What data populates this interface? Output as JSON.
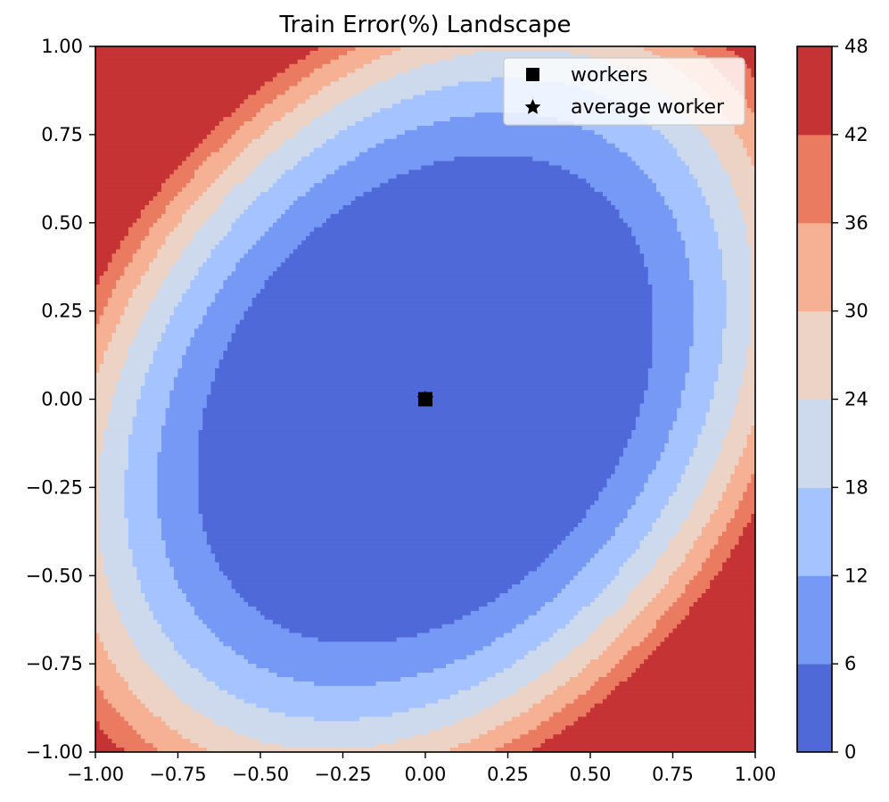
{
  "chart_data": {
    "type": "contour",
    "title": "Train Error(%) Landscape",
    "xlabel": "",
    "ylabel": "",
    "xlim": [
      -1.0,
      1.0
    ],
    "ylim": [
      -1.0,
      1.0
    ],
    "x_ticks": [
      "−1.00",
      "−0.75",
      "−0.50",
      "−0.25",
      "0.00",
      "0.25",
      "0.50",
      "0.75",
      "1.00"
    ],
    "y_ticks": [
      "−1.00",
      "−0.75",
      "−0.50",
      "−0.25",
      "0.00",
      "0.25",
      "0.50",
      "0.75",
      "1.00"
    ],
    "x_tick_values": [
      -1.0,
      -0.75,
      -0.5,
      -0.25,
      0.0,
      0.25,
      0.5,
      0.75,
      1.0
    ],
    "y_tick_values": [
      -1.0,
      -0.75,
      -0.5,
      -0.25,
      0.0,
      0.25,
      0.5,
      0.75,
      1.0
    ],
    "colorbar": {
      "levels": [
        0,
        6,
        12,
        18,
        24,
        30,
        36,
        42,
        48
      ],
      "tick_labels": [
        "0",
        "6",
        "12",
        "18",
        "24",
        "30",
        "36",
        "42",
        "48"
      ],
      "colors": [
        "#4f69d9",
        "#7699f6",
        "#a5c3fe",
        "#cdd9ec",
        "#ecd3c5",
        "#f6b194",
        "#ea7b60",
        "#c53334"
      ]
    },
    "contour_model": {
      "center": [
        0.0,
        0.0
      ],
      "orientation": "tilted ellipse, lowest error at center, rising toward top-left and bottom-right corners"
    },
    "points": [
      {
        "series": "workers",
        "marker": "square",
        "x": 0.0,
        "y": 0.0
      },
      {
        "series": "average worker",
        "marker": "star",
        "x": 0.0,
        "y": 0.0
      }
    ],
    "legend": {
      "position": "upper right",
      "entries": [
        {
          "label": "workers",
          "marker": "square"
        },
        {
          "label": "average worker",
          "marker": "star"
        }
      ]
    },
    "grid": false
  }
}
